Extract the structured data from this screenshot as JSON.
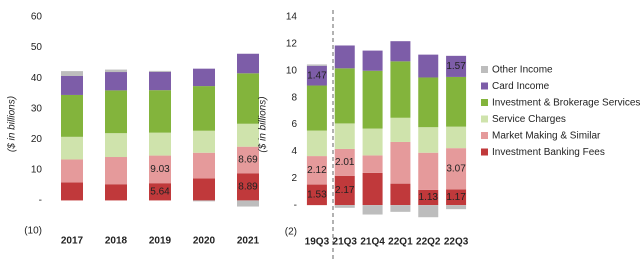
{
  "chart_data": [
    {
      "type": "bar",
      "y_label": "($ in billions)",
      "categories": [
        "2017",
        "2018",
        "2019",
        "2020",
        "2021"
      ],
      "ylim": [
        -10,
        60
      ],
      "yticks": [
        {
          "value": -10,
          "label": "(10)"
        },
        {
          "value": 0,
          "label": "-"
        },
        10,
        20,
        30,
        40,
        50,
        60
      ],
      "series": [
        {
          "name": "Investment Banking Fees",
          "color": "#c0393b",
          "values": [
            5.9,
            5.3,
            5.64,
            7.2,
            8.89
          ],
          "value_labels": [
            null,
            null,
            "5.64",
            null,
            "8.89"
          ]
        },
        {
          "name": "Market Making & Similar",
          "color": "#e59a9b",
          "values": [
            7.5,
            8.9,
            9.03,
            8.4,
            8.69
          ],
          "value_labels": [
            null,
            null,
            "9.03",
            null,
            "8.69"
          ]
        },
        {
          "name": "Service Charges",
          "color": "#cfe3ac",
          "values": [
            7.4,
            7.8,
            7.5,
            7.2,
            7.5
          ]
        },
        {
          "name": "Investment & Brokerage Services",
          "color": "#83b43c",
          "values": [
            13.7,
            14.0,
            13.9,
            14.6,
            16.5
          ]
        },
        {
          "name": "Card Income",
          "color": "#7d5da8",
          "values": [
            6.2,
            6.0,
            6.0,
            5.7,
            6.4
          ]
        },
        {
          "name": "Other Income",
          "color": "#bdbdbd",
          "values": [
            1.6,
            0.8,
            0.3,
            -0.3,
            -2.0
          ]
        }
      ]
    },
    {
      "type": "bar",
      "y_label": "($ in billions)",
      "categories": [
        "19Q3",
        "21Q3",
        "21Q4",
        "22Q1",
        "22Q2",
        "22Q3"
      ],
      "ylim": [
        -2,
        14
      ],
      "yticks": [
        {
          "value": -2,
          "label": "(2)"
        },
        {
          "value": 0,
          "label": "-"
        },
        2,
        4,
        6,
        8,
        10,
        12,
        14
      ],
      "series": [
        {
          "values": [
            1.53,
            2.17,
            2.4,
            1.6,
            1.13,
            1.17
          ],
          "value_labels": [
            "1.53",
            "2.17",
            null,
            null,
            "1.13",
            "1.17"
          ]
        },
        {
          "values": [
            2.12,
            2.01,
            1.3,
            3.1,
            2.77,
            3.07
          ],
          "value_labels": [
            "2.12",
            "2.01",
            null,
            null,
            null,
            "3.07"
          ]
        },
        {
          "values": [
            1.9,
            1.9,
            2.0,
            1.8,
            1.9,
            1.6
          ]
        },
        {
          "values": [
            3.35,
            4.1,
            4.3,
            4.2,
            3.7,
            3.7
          ]
        },
        {
          "values": [
            1.47,
            1.7,
            1.5,
            1.5,
            1.7,
            1.57
          ],
          "value_labels": [
            "1.47",
            null,
            null,
            null,
            null,
            "1.57"
          ]
        },
        {
          "values": [
            0.1,
            -0.2,
            -0.7,
            -0.5,
            -0.9,
            -0.3
          ]
        }
      ]
    }
  ]
}
